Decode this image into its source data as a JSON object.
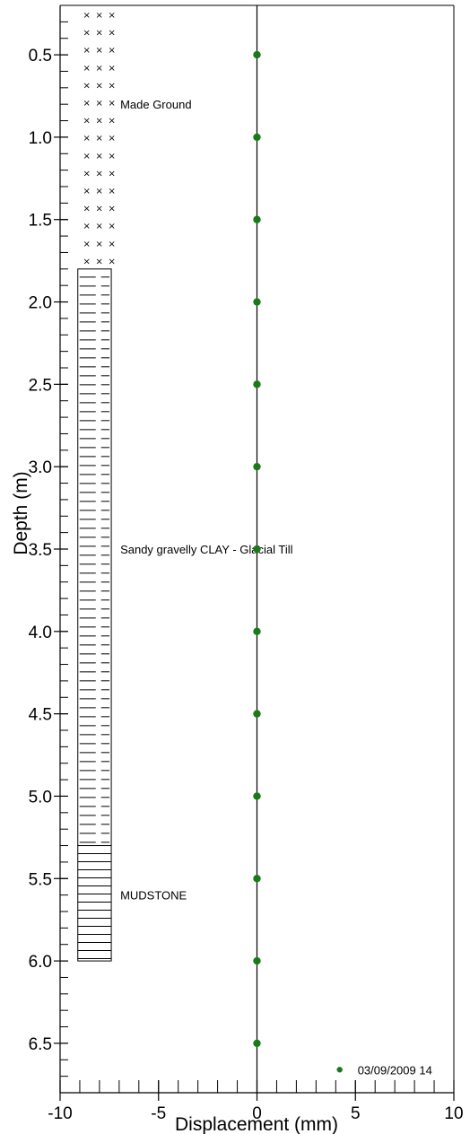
{
  "chart_data": {
    "type": "scatter",
    "xlabel": "Displacement (mm)",
    "ylabel": "Depth (m)",
    "xlim": [
      -10,
      10
    ],
    "ylim": [
      0.2,
      6.8
    ],
    "y_inverted": true,
    "x_ticks": [
      -10,
      -5,
      0,
      5,
      10
    ],
    "x_tick_labels": [
      "-10",
      "-5",
      "0",
      "5",
      "10"
    ],
    "y_ticks": [
      0.5,
      1.0,
      1.5,
      2.0,
      2.5,
      3.0,
      3.5,
      4.0,
      4.5,
      5.0,
      5.5,
      6.0,
      6.5
    ],
    "y_tick_labels": [
      "0.5",
      "1.0",
      "1.5",
      "2.0",
      "2.5",
      "3.0",
      "3.5",
      "4.0",
      "4.5",
      "5.0",
      "5.5",
      "6.0",
      "6.5"
    ],
    "grid": false,
    "series": [
      {
        "name": "03/09/2009 14",
        "color": "#1a7a1a",
        "x": [
          0,
          0,
          0,
          0,
          0,
          0,
          0,
          0,
          0,
          0,
          0,
          0,
          0
        ],
        "y": [
          0.5,
          1.0,
          1.5,
          2.0,
          2.5,
          3.0,
          3.5,
          4.0,
          4.5,
          5.0,
          5.5,
          6.0,
          6.5
        ]
      }
    ],
    "legend_position": "bottom-right",
    "strata": [
      {
        "label": "Made Ground",
        "top": 0.2,
        "bottom": 1.8,
        "pattern": "crosses"
      },
      {
        "label": "Sandy gravelly CLAY - Glacial Till",
        "top": 1.8,
        "bottom": 5.3,
        "pattern": "dashes"
      },
      {
        "label": "MUDSTONE",
        "top": 5.3,
        "bottom": 6.0,
        "pattern": "lines"
      }
    ],
    "strata_label_depths": [
      0.8,
      3.5,
      5.6
    ]
  }
}
